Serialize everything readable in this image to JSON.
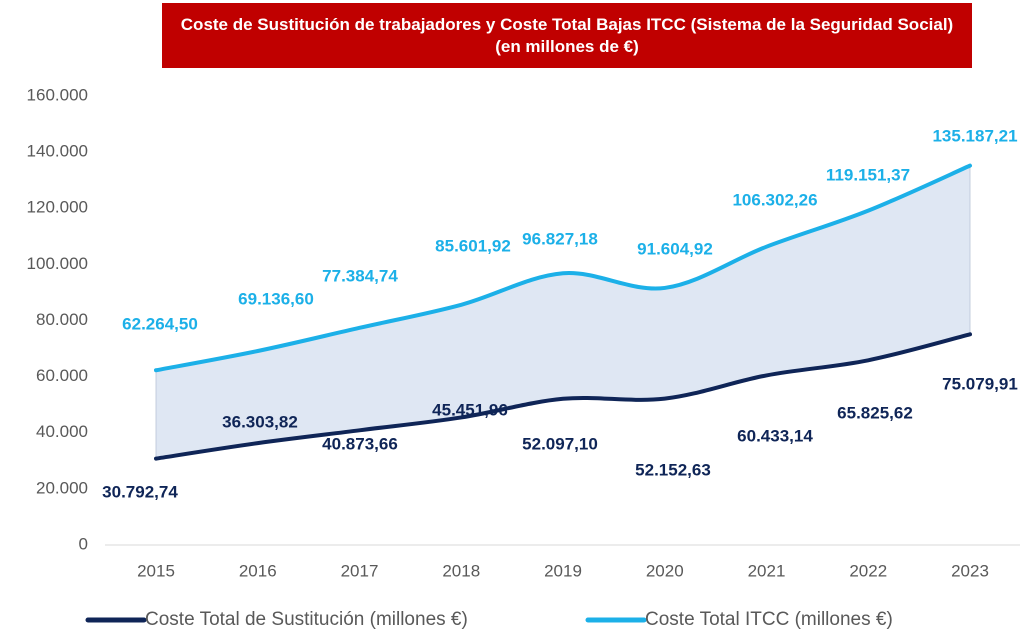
{
  "chart_data": {
    "type": "line",
    "title": "Coste de Sustitución de trabajadores  y Coste Total Bajas ITCC (Sistema de la Seguridad Social) (en millones de €)",
    "categories": [
      "2015",
      "2016",
      "2017",
      "2018",
      "2019",
      "2020",
      "2021",
      "2022",
      "2023"
    ],
    "series": [
      {
        "name": "Coste Total de Sustitución (millones €)",
        "color": "#0f2557",
        "values": [
          30792.74,
          36303.82,
          40873.66,
          45451.96,
          52097.1,
          52152.63,
          60433.14,
          65825.62,
          75079.91
        ],
        "value_labels": [
          "30.792,74",
          "36.303,82",
          "40.873,66",
          "45.451,96",
          "52.097,10",
          "52.152,63",
          "60.433,14",
          "65.825,62",
          "75.079,91"
        ]
      },
      {
        "name": "Coste Total ITCC (millones €)",
        "color": "#1cb0e8",
        "values": [
          62264.5,
          69136.6,
          77384.74,
          85601.92,
          96827.18,
          91604.92,
          106302.26,
          119151.37,
          135187.21
        ],
        "value_labels": [
          "62.264,50",
          "69.136,60",
          "77.384,74",
          "85.601,92",
          "96.827,18",
          "91.604,92",
          "106.302,26",
          "119.151,37",
          "135.187,21"
        ]
      }
    ],
    "area_color": "#dfe7f3",
    "ylim": [
      0,
      160000
    ],
    "yticks": [
      0,
      {
        "value": 20000,
        "label": "20.000"
      },
      {
        "value": 40000,
        "label": "40.000"
      },
      {
        "value": 60000,
        "label": "60.000"
      },
      {
        "value": 80000,
        "label": "80.000"
      },
      {
        "value": 100000,
        "label": "100.000"
      },
      {
        "value": 120000,
        "label": "120.000"
      },
      {
        "value": 140000,
        "label": "140.000"
      },
      {
        "value": 160000,
        "label": "160.000"
      }
    ],
    "grid": false,
    "legend": "bottom"
  }
}
